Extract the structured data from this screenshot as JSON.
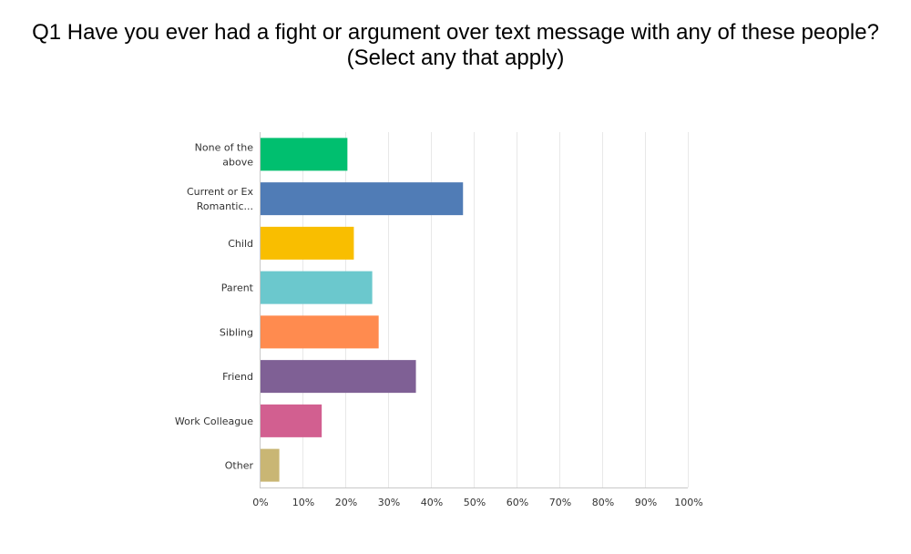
{
  "title": {
    "line1": "Q1 Have you ever had a fight or argument over text message with any of these people?",
    "line2": "(Select any that apply)"
  },
  "chart_data": {
    "type": "bar",
    "orientation": "horizontal",
    "title": "Q1 Have you ever had a fight or argument over text message with any of these people? (Select any that apply)",
    "categories": [
      [
        "None of the",
        "above"
      ],
      [
        "Current or Ex",
        "Romantic..."
      ],
      [
        "Child"
      ],
      [
        "Parent"
      ],
      [
        "Sibling"
      ],
      [
        "Friend"
      ],
      [
        "Work Colleague"
      ],
      [
        "Other"
      ]
    ],
    "values": [
      20.5,
      47.5,
      22,
      26.3,
      27.8,
      36.5,
      14.5,
      4.6
    ],
    "colors": [
      "#00bf6f",
      "#507cb6",
      "#f9be00",
      "#6bc8cd",
      "#ff8b4f",
      "#7f6095",
      "#d25f90",
      "#c9b674"
    ],
    "x_ticks": [
      "0%",
      "10%",
      "20%",
      "30%",
      "40%",
      "50%",
      "60%",
      "70%",
      "80%",
      "90%",
      "100%"
    ],
    "xlim": [
      0,
      100
    ],
    "grid": true,
    "legend": "none"
  }
}
